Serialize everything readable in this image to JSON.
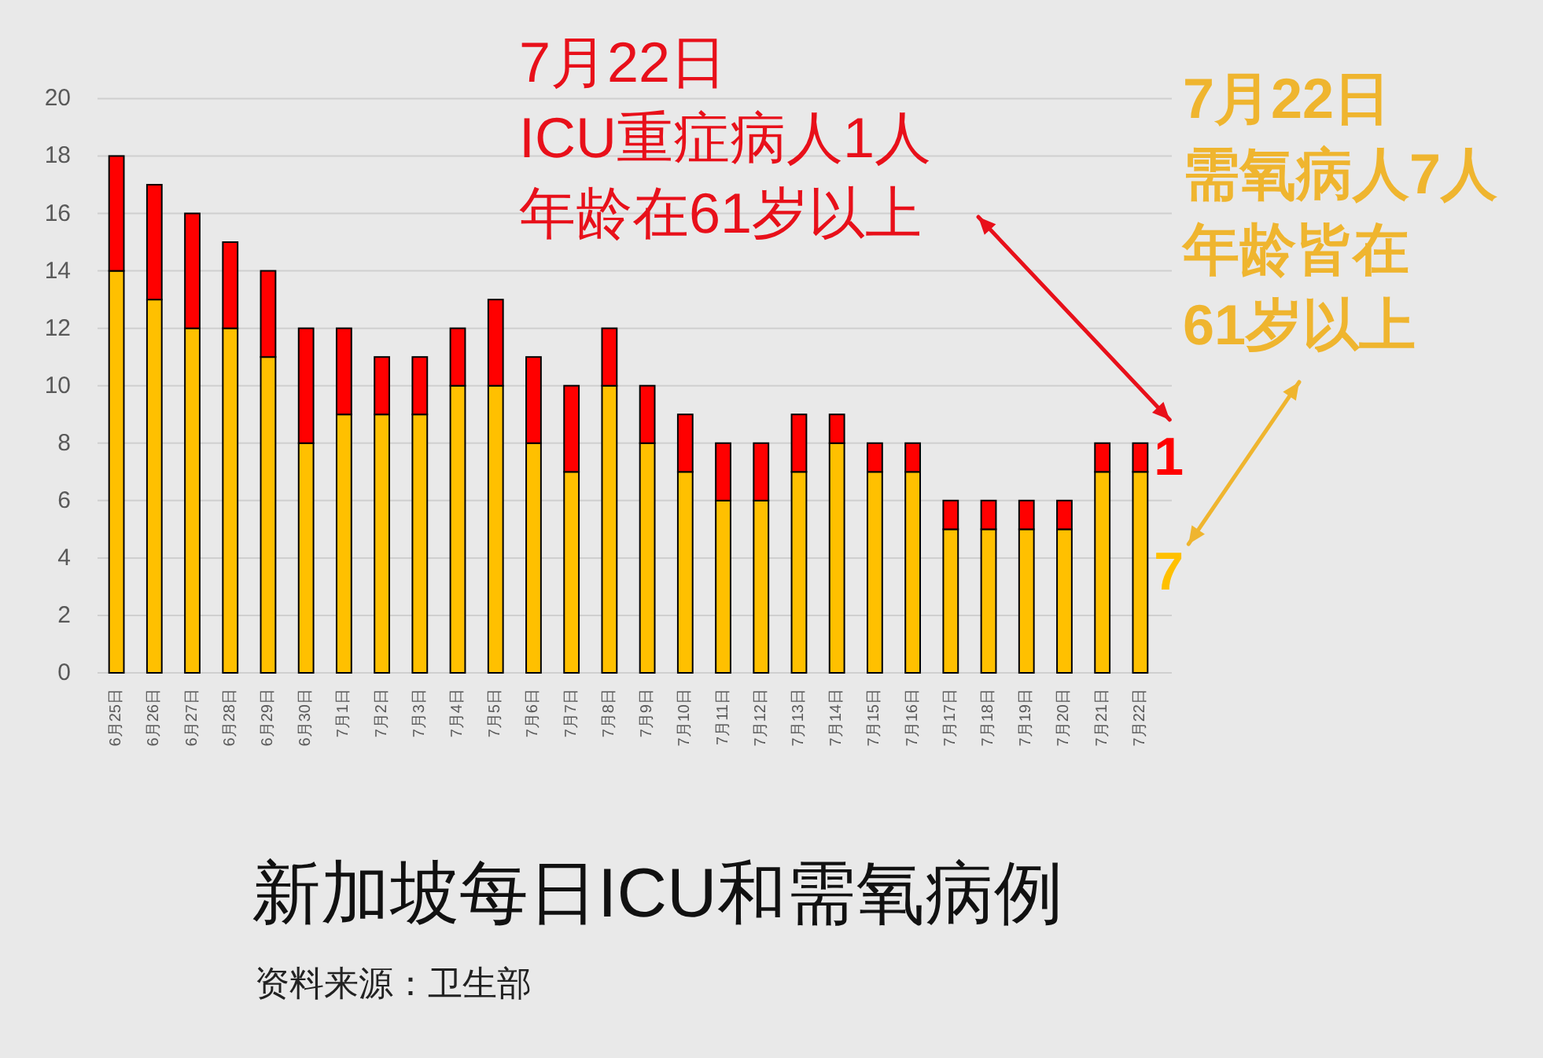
{
  "chart_data": {
    "type": "bar",
    "title": "新加坡每日ICU和需氧病例",
    "categories": [
      "6月25日",
      "6月26日",
      "6月27日",
      "6月28日",
      "6月29日",
      "6月30日",
      "7月1日",
      "7月2日",
      "7月3日",
      "7月4日",
      "7月5日",
      "7月6日",
      "7月7日",
      "7月8日",
      "7月9日",
      "7月10日",
      "7月11日",
      "7月12日",
      "7月13日",
      "7月14日",
      "7月15日",
      "7月16日",
      "7月17日",
      "7月18日",
      "7月19日",
      "7月20日",
      "7月21日",
      "7月22日"
    ],
    "stacked": true,
    "series": [
      {
        "color": "#ffc000",
        "values": [
          14,
          13,
          12,
          12,
          11,
          8,
          9,
          9,
          9,
          10,
          10,
          8,
          7,
          10,
          8,
          7,
          6,
          6,
          7,
          8,
          7,
          7,
          5,
          5,
          5,
          5,
          7,
          7
        ],
        "value_labels": [
          null,
          null,
          null,
          null,
          null,
          null,
          null,
          null,
          null,
          null,
          null,
          null,
          null,
          null,
          null,
          null,
          null,
          null,
          null,
          null,
          null,
          null,
          null,
          null,
          null,
          null,
          null,
          "7"
        ]
      },
      {
        "color": "#ff0000",
        "values": [
          4,
          4,
          4,
          3,
          3,
          4,
          3,
          2,
          2,
          2,
          3,
          3,
          3,
          2,
          2,
          2,
          2,
          2,
          2,
          1,
          1,
          1,
          1,
          1,
          1,
          1,
          1,
          1
        ],
        "value_labels": [
          null,
          null,
          null,
          null,
          null,
          null,
          null,
          null,
          null,
          null,
          null,
          null,
          null,
          null,
          null,
          null,
          null,
          null,
          null,
          null,
          null,
          null,
          null,
          null,
          null,
          null,
          null,
          "1"
        ]
      }
    ],
    "ylim": [
      0,
      20
    ],
    "yticks": [
      0,
      2,
      4,
      6,
      8,
      10,
      12,
      14,
      16,
      18,
      20
    ],
    "grid": "y",
    "annotations": [
      "7月22日",
      "ICU重症病人1人",
      "年龄在61岁以上",
      "7月22日",
      "需氧病人7人",
      "年龄皆在",
      "61岁以上",
      "资料来源：卫生部"
    ]
  }
}
